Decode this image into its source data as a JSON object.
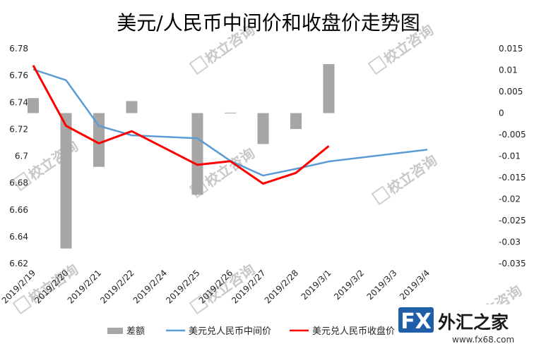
{
  "chart_data": {
    "type": "bar+line",
    "title": "美元/人民币中间价和收盘价走势图",
    "categories": [
      "2019/2/19",
      "2019/2/20",
      "2019/2/21",
      "2019/2/22",
      "2019/2/24",
      "2019/2/25",
      "2019/2/26",
      "2019/2/27",
      "2019/2/28",
      "2019/3/1",
      "2019/3/2",
      "2019/3/3",
      "2019/3/4"
    ],
    "left_axis": {
      "ylim": [
        6.62,
        6.78
      ],
      "ticks": [
        "6.62",
        "6.64",
        "6.66",
        "6.68",
        "6.7",
        "6.72",
        "6.74",
        "6.76",
        "6.78"
      ]
    },
    "right_axis": {
      "ylim": [
        -0.035,
        0.015
      ],
      "ticks": [
        "-0.035",
        "-0.03",
        "-0.025",
        "-0.02",
        "-0.015",
        "-0.01",
        "-0.005",
        "0",
        "0.005",
        "0.01",
        "0.015"
      ]
    },
    "series": [
      {
        "name": "差额",
        "type": "bar",
        "axis": "right",
        "color": "#a6a6a6",
        "values": [
          0.0035,
          -0.0315,
          -0.0125,
          0.0028,
          null,
          -0.019,
          0.0001,
          -0.0072,
          -0.0037,
          0.0114,
          null,
          null,
          null
        ]
      },
      {
        "name": "美元兑人民币中间价",
        "type": "line",
        "axis": "left",
        "color": "#5b9bd5",
        "values": [
          6.7645,
          6.7565,
          6.7225,
          6.7155,
          null,
          6.7132,
          6.6965,
          6.6855,
          6.6905,
          6.696,
          null,
          null,
          6.7048
        ]
      },
      {
        "name": "美元兑人民币收盘价",
        "type": "line",
        "axis": "left",
        "color": "#ff0000",
        "values": [
          6.7675,
          6.7225,
          6.7095,
          6.7185,
          null,
          6.6935,
          6.6962,
          6.6795,
          6.6875,
          6.7075,
          null,
          null,
          null
        ]
      }
    ],
    "grid": false,
    "legend_position": "bottom"
  },
  "legend": {
    "items": [
      "差额",
      "美元兑人民币中间价",
      "美元兑人民币收盘价"
    ]
  },
  "watermark": {
    "text": "校立咨询"
  },
  "logo": {
    "fx": "FX",
    "cn": "外汇之家",
    "url": "www.fx68.com"
  }
}
